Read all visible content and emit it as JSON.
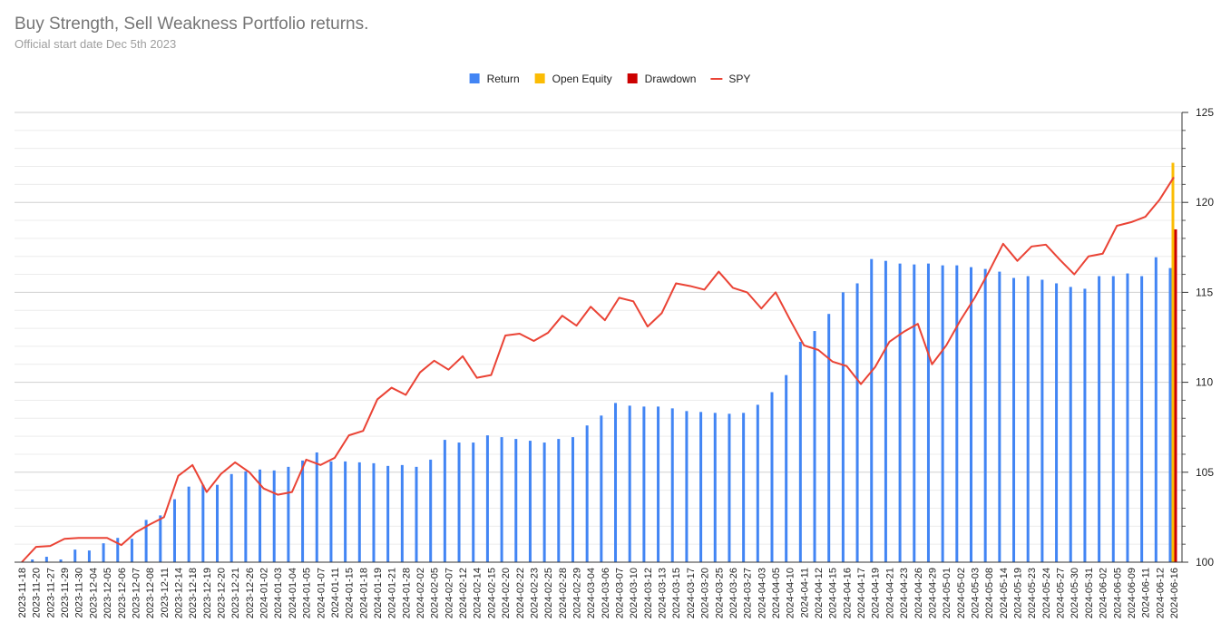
{
  "chart_data": {
    "type": "bar",
    "title": "Buy Strength, Sell Weakness Portfolio returns.",
    "subtitle": "Official start date Dec 5th 2023",
    "categories": [
      "2023-11-18",
      "2023-11-20",
      "2023-11-27",
      "2023-11-29",
      "2023-11-30",
      "2023-12-04",
      "2023-12-05",
      "2023-12-06",
      "2023-12-07",
      "2023-12-08",
      "2023-12-11",
      "2023-12-14",
      "2023-12-18",
      "2023-12-19",
      "2023-12-20",
      "2023-12-21",
      "2023-12-26",
      "2024-01-02",
      "2024-01-03",
      "2024-01-04",
      "2024-01-05",
      "2024-01-07",
      "2024-01-11",
      "2024-01-15",
      "2024-01-18",
      "2024-01-19",
      "2024-01-21",
      "2024-01-28",
      "2024-02-02",
      "2024-02-05",
      "2024-02-07",
      "2024-02-12",
      "2024-02-14",
      "2024-02-15",
      "2024-02-20",
      "2024-02-22",
      "2024-02-23",
      "2024-02-25",
      "2024-02-28",
      "2024-02-29",
      "2024-03-04",
      "2024-03-06",
      "2024-03-07",
      "2024-03-10",
      "2024-03-12",
      "2024-03-13",
      "2024-03-15",
      "2024-03-17",
      "2024-03-20",
      "2024-03-25",
      "2024-03-26",
      "2024-03-27",
      "2024-04-03",
      "2024-04-05",
      "2024-04-10",
      "2024-04-11",
      "2024-04-12",
      "2024-04-15",
      "2024-04-16",
      "2024-04-17",
      "2024-04-19",
      "2024-04-21",
      "2024-04-23",
      "2024-04-26",
      "2024-04-29",
      "2024-05-01",
      "2024-05-02",
      "2024-05-03",
      "2024-05-08",
      "2024-05-14",
      "2024-05-19",
      "2024-05-23",
      "2024-05-24",
      "2024-05-27",
      "2024-05-30",
      "2024-05-31",
      "2024-06-02",
      "2024-06-05",
      "2024-06-09",
      "2024-06-11",
      "2024-06-12",
      "2024-06-16"
    ],
    "series": [
      {
        "name": "Return",
        "color": "#4285f4",
        "values": [
          100,
          100.15,
          100.3,
          100.15,
          100.7,
          100.65,
          101.05,
          101.35,
          101.3,
          102.35,
          102.6,
          103.5,
          104.2,
          104.3,
          104.3,
          104.9,
          105.05,
          105.15,
          105.1,
          105.3,
          105.65,
          106.1,
          105.6,
          105.6,
          105.55,
          105.5,
          105.35,
          105.4,
          105.3,
          105.7,
          106.8,
          106.65,
          106.65,
          107.05,
          106.95,
          106.85,
          106.75,
          106.65,
          106.85,
          106.95,
          107.6,
          108.15,
          108.85,
          108.7,
          108.65,
          108.65,
          108.55,
          108.4,
          108.35,
          108.3,
          108.25,
          108.3,
          108.75,
          109.45,
          110.4,
          112.25,
          112.85,
          113.8,
          115.0,
          115.5,
          116.85,
          116.75,
          116.6,
          116.55,
          116.6,
          116.5,
          116.5,
          116.4,
          116.3,
          116.15,
          115.8,
          115.9,
          115.7,
          115.5,
          115.3,
          115.2,
          115.9,
          115.9,
          116.05,
          115.9,
          116.95,
          116.35
        ]
      },
      {
        "name": "Open Equity",
        "color": "#fbbc04",
        "values": [
          null,
          null,
          null,
          null,
          null,
          null,
          null,
          null,
          null,
          null,
          null,
          null,
          null,
          null,
          null,
          null,
          null,
          null,
          null,
          null,
          null,
          null,
          null,
          null,
          null,
          null,
          null,
          null,
          null,
          null,
          null,
          null,
          null,
          null,
          null,
          null,
          null,
          null,
          null,
          null,
          null,
          null,
          null,
          null,
          null,
          null,
          null,
          null,
          null,
          null,
          null,
          null,
          null,
          null,
          null,
          null,
          null,
          null,
          null,
          null,
          null,
          null,
          null,
          null,
          null,
          null,
          null,
          null,
          null,
          null,
          null,
          null,
          null,
          null,
          null,
          null,
          null,
          null,
          null,
          null,
          null,
          122.2
        ]
      },
      {
        "name": "Drawdown",
        "color": "#cc0000",
        "values": [
          null,
          null,
          null,
          null,
          null,
          null,
          null,
          null,
          null,
          null,
          null,
          null,
          null,
          null,
          null,
          null,
          null,
          null,
          null,
          null,
          null,
          null,
          null,
          null,
          null,
          null,
          null,
          null,
          null,
          null,
          null,
          null,
          null,
          null,
          null,
          null,
          null,
          null,
          null,
          null,
          null,
          null,
          null,
          null,
          null,
          null,
          null,
          null,
          null,
          null,
          null,
          null,
          null,
          null,
          null,
          null,
          null,
          null,
          null,
          null,
          null,
          null,
          null,
          null,
          null,
          null,
          null,
          null,
          null,
          null,
          null,
          null,
          null,
          null,
          null,
          null,
          null,
          null,
          null,
          null,
          null,
          118.5
        ]
      },
      {
        "name": "SPY",
        "color": "#ea4335",
        "type": "line",
        "values": [
          100,
          100.85,
          100.9,
          101.3,
          101.35,
          101.35,
          101.35,
          100.95,
          101.65,
          102.1,
          102.5,
          104.8,
          105.4,
          103.9,
          104.9,
          105.55,
          105,
          104.1,
          103.75,
          103.9,
          105.7,
          105.4,
          105.8,
          107.05,
          107.3,
          109.05,
          109.7,
          109.3,
          110.55,
          111.2,
          110.7,
          111.45,
          110.25,
          110.4,
          112.6,
          112.7,
          112.3,
          112.75,
          113.7,
          113.15,
          114.2,
          113.45,
          114.7,
          114.5,
          113.1,
          113.85,
          115.5,
          115.35,
          115.15,
          116.15,
          115.25,
          115,
          114.1,
          115,
          113.5,
          112.05,
          111.8,
          111.15,
          110.9,
          109.9,
          110.85,
          112.25,
          112.8,
          113.25,
          111,
          112.05,
          113.45,
          114.7,
          116.15,
          117.7,
          116.75,
          117.55,
          117.65,
          116.8,
          116,
          117,
          117.15,
          118.7,
          118.9,
          119.2,
          120.15,
          121.4
        ]
      }
    ],
    "ylim": [
      100,
      125
    ],
    "yticks": [
      100,
      105,
      110,
      115,
      120,
      125
    ],
    "yminorticks": [
      101,
      102,
      103,
      104,
      106,
      107,
      108,
      109,
      111,
      112,
      113,
      114,
      116,
      117,
      118,
      119,
      121,
      122,
      123,
      124
    ],
    "grid": true,
    "legend": "top"
  }
}
